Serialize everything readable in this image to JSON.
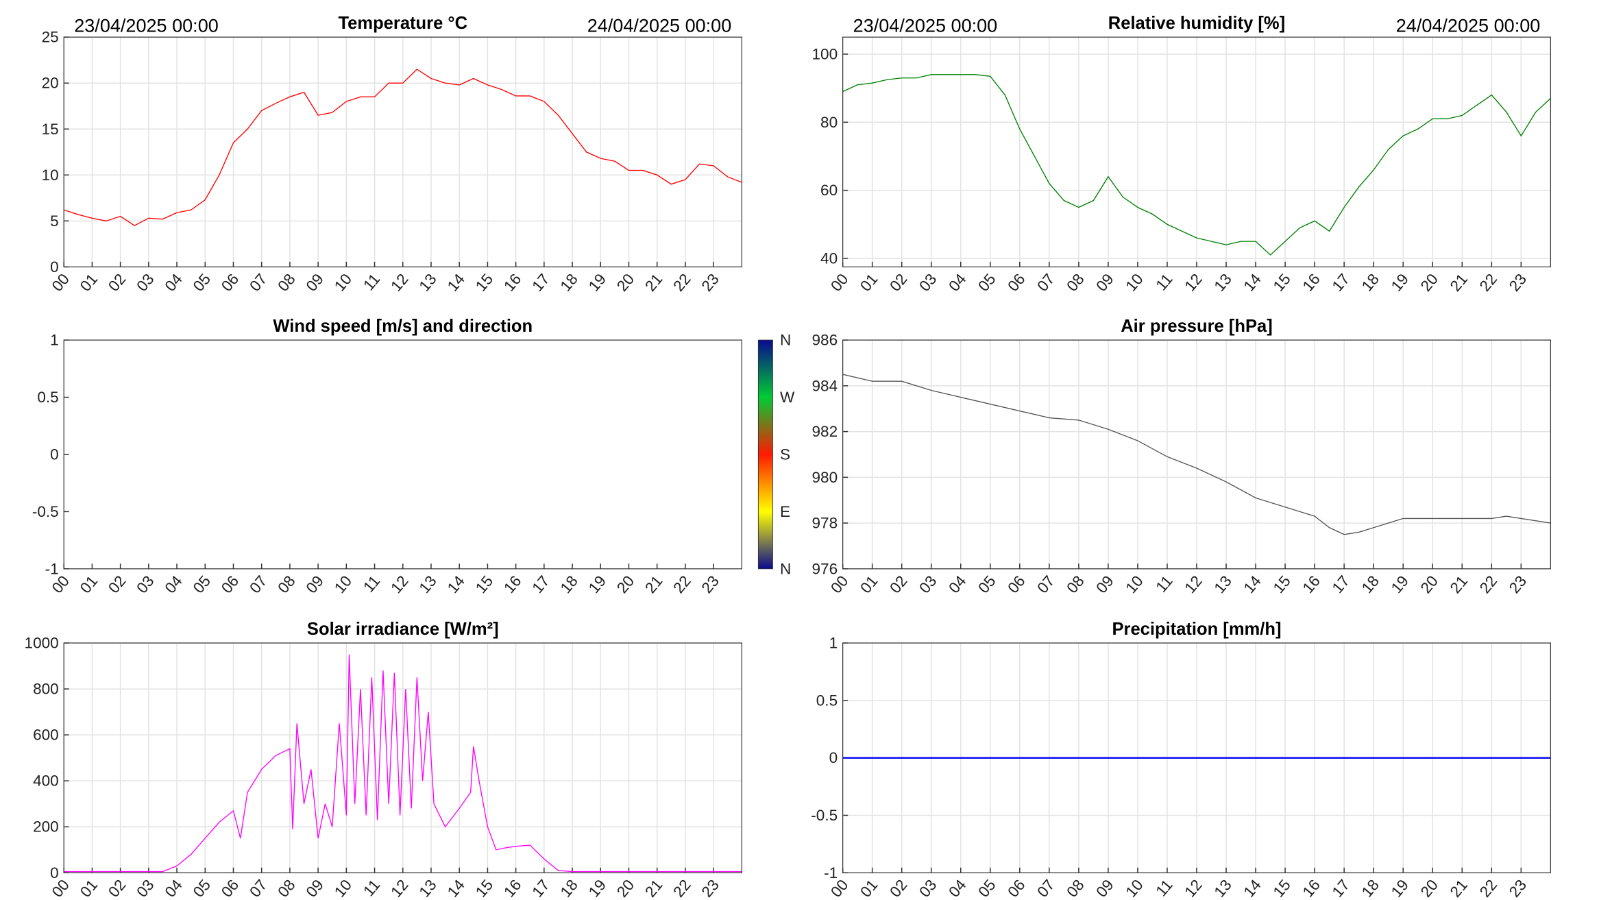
{
  "chart_data": [
    {
      "type": "line",
      "title": "Temperature °C",
      "start_label": "23/04/2025 00:00",
      "end_label": "24/04/2025 00:00",
      "xlim": [
        0,
        24
      ],
      "ylim": [
        0,
        25
      ],
      "yticks": [
        0,
        5,
        10,
        15,
        20,
        25
      ],
      "grid": true,
      "xticks": [
        {
          "value": 0,
          "label": "00"
        },
        {
          "value": 1,
          "label": "01"
        },
        {
          "value": 2,
          "label": "02"
        },
        {
          "value": 3,
          "label": "03"
        },
        {
          "value": 4,
          "label": "04"
        },
        {
          "value": 5,
          "label": "05"
        },
        {
          "value": 6,
          "label": "06"
        },
        {
          "value": 7,
          "label": "07"
        },
        {
          "value": 8,
          "label": "08"
        },
        {
          "value": 9,
          "label": "09"
        },
        {
          "value": 10,
          "label": "10"
        },
        {
          "value": 11,
          "label": "11"
        },
        {
          "value": 12,
          "label": "12"
        },
        {
          "value": 13,
          "label": "13"
        },
        {
          "value": 14,
          "label": "14"
        },
        {
          "value": 15,
          "label": "15"
        },
        {
          "value": 16,
          "label": "16"
        },
        {
          "value": 17,
          "label": "17"
        },
        {
          "value": 18,
          "label": "18"
        },
        {
          "value": 19,
          "label": "19"
        },
        {
          "value": 20,
          "label": "20"
        },
        {
          "value": 21,
          "label": "21"
        },
        {
          "value": 22,
          "label": "22"
        },
        {
          "value": 23,
          "label": "23"
        }
      ],
      "series": [
        {
          "color": "#ff0000",
          "x": [
            0,
            0.5,
            1,
            1.5,
            2,
            2.5,
            3,
            3.5,
            4,
            4.5,
            5,
            5.5,
            6,
            6.5,
            7,
            7.5,
            8,
            8.5,
            9,
            9.5,
            10,
            10.5,
            11,
            11.5,
            12,
            12.5,
            13,
            13.5,
            14,
            14.5,
            15,
            15.5,
            16,
            16.5,
            17,
            17.5,
            18,
            18.5,
            19,
            19.5,
            20,
            20.5,
            21,
            21.5,
            22,
            22.5,
            23,
            23.5,
            24
          ],
          "values": [
            6.2,
            5.7,
            5.3,
            5.0,
            5.5,
            4.5,
            5.3,
            5.2,
            5.9,
            6.2,
            7.3,
            10,
            13.5,
            15,
            17,
            17.8,
            18.5,
            19,
            16.5,
            16.8,
            18,
            18.5,
            18.5,
            20,
            20,
            21.5,
            20.5,
            20,
            19.8,
            20.5,
            19.8,
            19.3,
            18.6,
            18.6,
            18,
            16.5,
            14.5,
            12.5,
            11.8,
            11.5,
            10.5,
            10.5,
            10,
            9,
            9.5,
            11.2,
            11,
            9.8,
            9.2
          ]
        }
      ]
    },
    {
      "type": "line",
      "title": "Relative humidity [%]",
      "start_label": "23/04/2025 00:00",
      "end_label": "24/04/2025 00:00",
      "xlim": [
        0,
        24
      ],
      "ylim": [
        37.5,
        105
      ],
      "yticks": [
        40,
        60,
        80,
        100
      ],
      "grid": true,
      "xticks": [
        {
          "value": 0,
          "label": "00"
        },
        {
          "value": 1,
          "label": "01"
        },
        {
          "value": 2,
          "label": "02"
        },
        {
          "value": 3,
          "label": "03"
        },
        {
          "value": 4,
          "label": "04"
        },
        {
          "value": 5,
          "label": "05"
        },
        {
          "value": 6,
          "label": "06"
        },
        {
          "value": 7,
          "label": "07"
        },
        {
          "value": 8,
          "label": "08"
        },
        {
          "value": 9,
          "label": "09"
        },
        {
          "value": 10,
          "label": "10"
        },
        {
          "value": 11,
          "label": "11"
        },
        {
          "value": 12,
          "label": "12"
        },
        {
          "value": 13,
          "label": "13"
        },
        {
          "value": 14,
          "label": "14"
        },
        {
          "value": 15,
          "label": "15"
        },
        {
          "value": 16,
          "label": "16"
        },
        {
          "value": 17,
          "label": "17"
        },
        {
          "value": 18,
          "label": "18"
        },
        {
          "value": 19,
          "label": "19"
        },
        {
          "value": 20,
          "label": "20"
        },
        {
          "value": 21,
          "label": "21"
        },
        {
          "value": 22,
          "label": "22"
        },
        {
          "value": 23,
          "label": "23"
        }
      ],
      "series": [
        {
          "color": "#008000",
          "x": [
            0,
            0.5,
            1,
            1.5,
            2,
            2.5,
            3,
            3.5,
            4,
            4.5,
            5,
            5.5,
            6,
            6.5,
            7,
            7.5,
            8,
            8.5,
            9,
            9.5,
            10,
            10.5,
            11,
            11.5,
            12,
            12.5,
            13,
            13.5,
            14,
            14.5,
            15,
            15.5,
            16,
            16.5,
            17,
            17.5,
            18,
            18.5,
            19,
            19.5,
            20,
            20.5,
            21,
            21.5,
            22,
            22.5,
            23,
            23.5,
            24
          ],
          "values": [
            89,
            91,
            91.5,
            92.5,
            93,
            93,
            94,
            94,
            94,
            94,
            93.5,
            88,
            78,
            70,
            62,
            57,
            55,
            57,
            64,
            58,
            55,
            53,
            50,
            48,
            46,
            45,
            44,
            45,
            45,
            41,
            45,
            49,
            51,
            48,
            55,
            61,
            66,
            72,
            76,
            78,
            81,
            81,
            82,
            85,
            88,
            83,
            76,
            83,
            87
          ]
        }
      ]
    },
    {
      "type": "line",
      "title": "Wind speed [m/s] and direction",
      "xlim": [
        0,
        24
      ],
      "ylim": [
        -1,
        1
      ],
      "yticks": [
        -1,
        -0.5,
        0,
        0.5,
        1
      ],
      "grid": false,
      "xticks": [
        {
          "value": 0,
          "label": "00"
        },
        {
          "value": 1,
          "label": "01"
        },
        {
          "value": 2,
          "label": "02"
        },
        {
          "value": 3,
          "label": "03"
        },
        {
          "value": 4,
          "label": "04"
        },
        {
          "value": 5,
          "label": "05"
        },
        {
          "value": 6,
          "label": "06"
        },
        {
          "value": 7,
          "label": "07"
        },
        {
          "value": 8,
          "label": "08"
        },
        {
          "value": 9,
          "label": "09"
        },
        {
          "value": 10,
          "label": "10"
        },
        {
          "value": 11,
          "label": "11"
        },
        {
          "value": 12,
          "label": "12"
        },
        {
          "value": 13,
          "label": "13"
        },
        {
          "value": 14,
          "label": "14"
        },
        {
          "value": 15,
          "label": "15"
        },
        {
          "value": 16,
          "label": "16"
        },
        {
          "value": 17,
          "label": "17"
        },
        {
          "value": 18,
          "label": "18"
        },
        {
          "value": 19,
          "label": "19"
        },
        {
          "value": 20,
          "label": "20"
        },
        {
          "value": 21,
          "label": "21"
        },
        {
          "value": 22,
          "label": "22"
        },
        {
          "value": 23,
          "label": "23"
        }
      ],
      "series": [],
      "colorbar": {
        "labels": [
          "N",
          "W",
          "S",
          "E",
          "N"
        ]
      }
    },
    {
      "type": "line",
      "title": "Air pressure [hPa]",
      "xlim": [
        0,
        24
      ],
      "ylim": [
        976,
        986
      ],
      "yticks": [
        976,
        978,
        980,
        982,
        984,
        986
      ],
      "grid": true,
      "xticks": [
        {
          "value": 0,
          "label": "00"
        },
        {
          "value": 1,
          "label": "01"
        },
        {
          "value": 2,
          "label": "02"
        },
        {
          "value": 3,
          "label": "03"
        },
        {
          "value": 4,
          "label": "04"
        },
        {
          "value": 5,
          "label": "05"
        },
        {
          "value": 6,
          "label": "06"
        },
        {
          "value": 7,
          "label": "07"
        },
        {
          "value": 8,
          "label": "08"
        },
        {
          "value": 9,
          "label": "09"
        },
        {
          "value": 10,
          "label": "10"
        },
        {
          "value": 11,
          "label": "11"
        },
        {
          "value": 12,
          "label": "12"
        },
        {
          "value": 13,
          "label": "13"
        },
        {
          "value": 14,
          "label": "14"
        },
        {
          "value": 15,
          "label": "15"
        },
        {
          "value": 16,
          "label": "16"
        },
        {
          "value": 17,
          "label": "17"
        },
        {
          "value": 18,
          "label": "18"
        },
        {
          "value": 19,
          "label": "19"
        },
        {
          "value": 20,
          "label": "20"
        },
        {
          "value": 21,
          "label": "21"
        },
        {
          "value": 22,
          "label": "22"
        },
        {
          "value": 23,
          "label": "23"
        }
      ],
      "series": [
        {
          "color": "#555555",
          "x": [
            0,
            1,
            2,
            3,
            4,
            5,
            6,
            7,
            8,
            9,
            10,
            11,
            12,
            13,
            14,
            15,
            16,
            16.5,
            17,
            17.5,
            18,
            19,
            20,
            21,
            22,
            22.5,
            23,
            24
          ],
          "values": [
            984.5,
            984.2,
            984.2,
            983.8,
            983.5,
            983.2,
            982.9,
            982.6,
            982.5,
            982.1,
            981.6,
            980.9,
            980.4,
            979.8,
            979.1,
            978.7,
            978.3,
            977.8,
            977.5,
            977.6,
            977.8,
            978.2,
            978.2,
            978.2,
            978.2,
            978.3,
            978.2,
            978.0
          ]
        }
      ]
    },
    {
      "type": "line",
      "title": "Solar irradiance [W/m²]",
      "xlim": [
        0,
        24
      ],
      "ylim": [
        0,
        1000
      ],
      "yticks": [
        0,
        200,
        400,
        600,
        800,
        1000
      ],
      "grid": true,
      "xticks": [
        {
          "value": 0,
          "label": "00"
        },
        {
          "value": 1,
          "label": "01"
        },
        {
          "value": 2,
          "label": "02"
        },
        {
          "value": 3,
          "label": "03"
        },
        {
          "value": 4,
          "label": "04"
        },
        {
          "value": 5,
          "label": "05"
        },
        {
          "value": 6,
          "label": "06"
        },
        {
          "value": 7,
          "label": "07"
        },
        {
          "value": 8,
          "label": "08"
        },
        {
          "value": 9,
          "label": "09"
        },
        {
          "value": 10,
          "label": "10"
        },
        {
          "value": 11,
          "label": "11"
        },
        {
          "value": 12,
          "label": "12"
        },
        {
          "value": 13,
          "label": "13"
        },
        {
          "value": 14,
          "label": "14"
        },
        {
          "value": 15,
          "label": "15"
        },
        {
          "value": 16,
          "label": "16"
        },
        {
          "value": 17,
          "label": "17"
        },
        {
          "value": 18,
          "label": "18"
        },
        {
          "value": 19,
          "label": "19"
        },
        {
          "value": 20,
          "label": "20"
        },
        {
          "value": 21,
          "label": "21"
        },
        {
          "value": 22,
          "label": "22"
        },
        {
          "value": 23,
          "label": "23"
        }
      ],
      "series": [
        {
          "color": "#ff00ff",
          "x": [
            0,
            3.5,
            4,
            4.5,
            5,
            5.5,
            6,
            6.25,
            6.5,
            7,
            7.5,
            8,
            8.1,
            8.25,
            8.5,
            8.75,
            9,
            9.25,
            9.5,
            9.75,
            10,
            10.1,
            10.3,
            10.5,
            10.7,
            10.9,
            11.1,
            11.3,
            11.5,
            11.7,
            11.9,
            12.1,
            12.3,
            12.5,
            12.7,
            12.9,
            13.1,
            13.5,
            14,
            14.4,
            14.5,
            14.7,
            15,
            15.3,
            15.7,
            16,
            16.5,
            17,
            17.5,
            18,
            24
          ],
          "values": [
            5,
            5,
            30,
            80,
            150,
            220,
            270,
            150,
            350,
            450,
            510,
            540,
            190,
            650,
            300,
            450,
            150,
            300,
            200,
            650,
            250,
            950,
            300,
            800,
            250,
            850,
            230,
            880,
            300,
            870,
            250,
            800,
            280,
            850,
            400,
            700,
            300,
            200,
            280,
            350,
            550,
            400,
            200,
            100,
            110,
            115,
            120,
            60,
            10,
            5,
            5
          ]
        }
      ]
    },
    {
      "type": "line",
      "title": "Precipitation [mm/h]",
      "xlim": [
        0,
        24
      ],
      "ylim": [
        -1,
        1
      ],
      "yticks": [
        -1,
        -0.5,
        0,
        0.5,
        1
      ],
      "grid": true,
      "xticks": [
        {
          "value": 0,
          "label": "00"
        },
        {
          "value": 1,
          "label": "01"
        },
        {
          "value": 2,
          "label": "02"
        },
        {
          "value": 3,
          "label": "03"
        },
        {
          "value": 4,
          "label": "04"
        },
        {
          "value": 5,
          "label": "05"
        },
        {
          "value": 6,
          "label": "06"
        },
        {
          "value": 7,
          "label": "07"
        },
        {
          "value": 8,
          "label": "08"
        },
        {
          "value": 9,
          "label": "09"
        },
        {
          "value": 10,
          "label": "10"
        },
        {
          "value": 11,
          "label": "11"
        },
        {
          "value": 12,
          "label": "12"
        },
        {
          "value": 13,
          "label": "13"
        },
        {
          "value": 14,
          "label": "14"
        },
        {
          "value": 15,
          "label": "15"
        },
        {
          "value": 16,
          "label": "16"
        },
        {
          "value": 17,
          "label": "17"
        },
        {
          "value": 18,
          "label": "18"
        },
        {
          "value": 19,
          "label": "19"
        },
        {
          "value": 20,
          "label": "20"
        },
        {
          "value": 21,
          "label": "21"
        },
        {
          "value": 22,
          "label": "22"
        },
        {
          "value": 23,
          "label": "23"
        }
      ],
      "series": [
        {
          "color": "#0000ff",
          "x": [
            0,
            24
          ],
          "values": [
            0,
            0
          ]
        }
      ]
    }
  ]
}
